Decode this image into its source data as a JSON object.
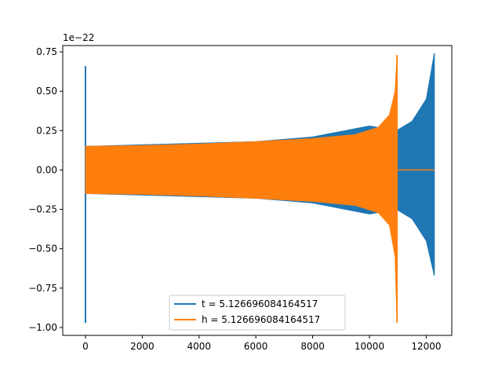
{
  "chart_data": {
    "type": "line",
    "title": "",
    "xlabel": "",
    "ylabel": "",
    "y_offset_label": "1e−22",
    "y_scale_factor": 1e-22,
    "xlim": [
      -800,
      12900
    ],
    "ylim": [
      -1.05,
      0.79
    ],
    "x_ticks": [
      0,
      2000,
      4000,
      6000,
      8000,
      10000,
      12000
    ],
    "x_tick_labels": [
      "0",
      "2000",
      "4000",
      "6000",
      "8000",
      "10000",
      "12000"
    ],
    "y_ticks": [
      -1.0,
      -0.75,
      -0.5,
      -0.25,
      0.0,
      0.25,
      0.5,
      0.75
    ],
    "y_tick_labels": [
      "−1.00",
      "−0.75",
      "−0.50",
      "−0.25",
      "0.00",
      "0.25",
      "0.50",
      "0.75"
    ],
    "grid": false,
    "legend_position": "lower-center",
    "series": [
      {
        "name": "t = 5.126696084164517",
        "color": "#1f77b4",
        "description_points": {
          "spike_x": 0,
          "spike_max": 0.66,
          "spike_min": -0.97,
          "envelope_x": [
            0,
            2000,
            4000,
            6000,
            8000,
            10000,
            10950,
            11500,
            12000,
            12280
          ],
          "envelope_upper": [
            0.15,
            0.16,
            0.17,
            0.18,
            0.21,
            0.28,
            0.25,
            0.31,
            0.45,
            0.74
          ],
          "envelope_lower": [
            -0.15,
            -0.16,
            -0.17,
            -0.18,
            -0.21,
            -0.28,
            -0.25,
            -0.31,
            -0.45,
            -0.67
          ],
          "end_x": 12280
        }
      },
      {
        "name": "h = 5.126696084164517",
        "color": "#ff7f0e",
        "description_points": {
          "envelope_x": [
            0,
            2000,
            4000,
            6000,
            8000,
            9500,
            10300,
            10700,
            10900,
            10970
          ],
          "envelope_upper": [
            0.15,
            0.155,
            0.165,
            0.18,
            0.2,
            0.225,
            0.27,
            0.35,
            0.5,
            0.73
          ],
          "envelope_lower": [
            -0.15,
            -0.155,
            -0.165,
            -0.18,
            -0.2,
            -0.225,
            -0.27,
            -0.35,
            -0.55,
            -0.97
          ],
          "flat_start_x": 10970,
          "flat_end_x": 12280,
          "flat_value": 0.0
        }
      }
    ]
  }
}
